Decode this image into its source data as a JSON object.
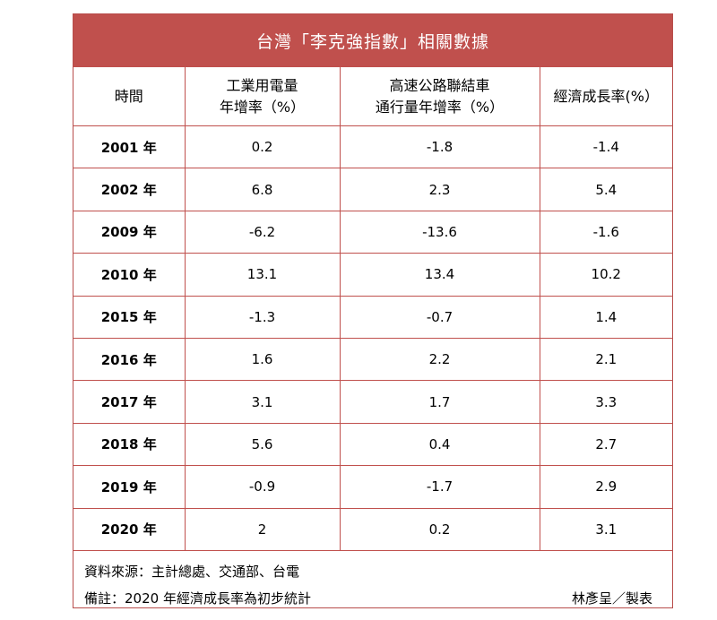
{
  "title": "台灣「李克強指數」相關數據",
  "headers": {
    "time": "時間",
    "power_line1": "工業用電量",
    "power_line2": "年增率（%）",
    "highway_line1": "高速公路聯結車",
    "highway_line2": "通行量年增率（%）",
    "gdp": "經濟成長率(%）"
  },
  "rows": [
    {
      "year": "2001 年",
      "power": "0.2",
      "highway": "-1.8",
      "gdp": "-1.4"
    },
    {
      "year": "2002 年",
      "power": "6.8",
      "highway": "2.3",
      "gdp": "5.4"
    },
    {
      "year": "2009 年",
      "power": "-6.2",
      "highway": "-13.6",
      "gdp": "-1.6"
    },
    {
      "year": "2010 年",
      "power": "13.1",
      "highway": "13.4",
      "gdp": "10.2"
    },
    {
      "year": "2015 年",
      "power": "-1.3",
      "highway": "-0.7",
      "gdp": "1.4"
    },
    {
      "year": "2016 年",
      "power": "1.6",
      "highway": "2.2",
      "gdp": "2.1"
    },
    {
      "year": "2017 年",
      "power": "3.1",
      "highway": "1.7",
      "gdp": "3.3"
    },
    {
      "year": "2018 年",
      "power": "5.6",
      "highway": "0.4",
      "gdp": "2.7"
    },
    {
      "year": "2019 年",
      "power": "-0.9",
      "highway": "-1.7",
      "gdp": "2.9"
    },
    {
      "year": "2020 年",
      "power": "2",
      "highway": "0.2",
      "gdp": "3.1"
    }
  ],
  "footer": {
    "source": "資料來源：主計總處、交通部、台電",
    "note": "備註：2020 年經濟成長率為初步統計",
    "maker": "林彥呈／製表"
  },
  "colors": {
    "accent": "#c0504d",
    "title_text": "#ffffff"
  }
}
